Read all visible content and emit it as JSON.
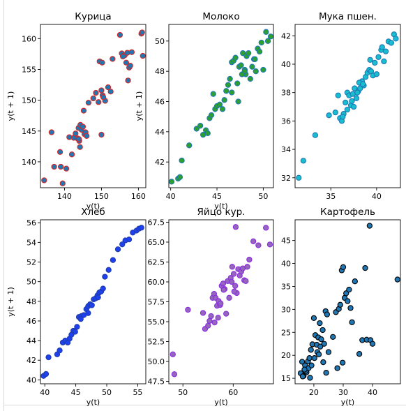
{
  "chart_data": [
    {
      "type": "scatter",
      "title": "Курица",
      "xlabel": "y(t)",
      "ylabel": "y(t + 1)",
      "xlim": [
        133.5,
        162
      ],
      "ylim": [
        135.8,
        162.3
      ],
      "xticks": [
        140,
        150,
        160
      ],
      "yticks": [
        140,
        145,
        150,
        155,
        160
      ],
      "face_color": "#1f77b4",
      "edge_color": "#d62728",
      "grid": false,
      "series": [
        {
          "x": [
            134.5,
            136.5,
            137.2,
            138.8,
            139.0,
            139.5,
            140.5,
            141.3,
            142.0,
            142.5,
            143.0,
            143.5,
            143.8,
            144.0,
            144.3,
            144.6,
            145.0,
            145.4,
            145.7,
            146.0,
            144.2,
            143.9,
            145.2,
            146.5,
            147.8,
            148.5,
            149.2,
            150.0,
            150.3,
            151.0,
            151.8,
            152.5,
            150.5,
            149.5,
            150.2,
            153.0,
            155.0,
            155.5,
            156.3,
            156.7,
            157.0,
            157.2,
            157.5,
            157.8,
            158.2,
            155.8,
            150.0,
            160.8,
            161.0,
            161.2
          ],
          "y": [
            137.0,
            144.8,
            139.2,
            141.6,
            139.2,
            136.5,
            138.9,
            144.0,
            141.2,
            143.9,
            144.6,
            143.8,
            145.5,
            143.4,
            146.0,
            145.2,
            145.7,
            144.5,
            144.8,
            144.2,
            142.4,
            143.7,
            148.3,
            149.6,
            150.3,
            151.2,
            149.7,
            151.6,
            150.8,
            149.9,
            152.1,
            151.4,
            150.5,
            156.3,
            156.1,
            156.7,
            160.6,
            157.6,
            157.3,
            156.1,
            157.7,
            153.2,
            155.3,
            155.6,
            157.8,
            157.1,
            144.4,
            160.8,
            161.0,
            157.2
          ]
        }
      ]
    },
    {
      "type": "scatter",
      "title": "Молоко",
      "xlabel": "y(t)",
      "ylabel": "y(t + 1)",
      "xlim": [
        39.8,
        51.1
      ],
      "ylim": [
        40.3,
        51.1
      ],
      "xticks": [
        40,
        45,
        50
      ],
      "yticks": [
        42,
        44,
        46,
        48,
        50
      ],
      "face_color": "#2ca02c",
      "edge_color": "#1f77b4",
      "grid": false,
      "series": [
        {
          "x": [
            40.1,
            40.8,
            41.0,
            41.2,
            42.0,
            42.8,
            43.2,
            43.5,
            43.8,
            44.0,
            44.2,
            44.4,
            44.6,
            44.8,
            45.0,
            45.3,
            45.6,
            45.8,
            46.0,
            46.2,
            46.4,
            46.6,
            46.8,
            47.0,
            47.2,
            47.4,
            47.6,
            47.8,
            48.0,
            48.2,
            48.4,
            48.6,
            48.8,
            49.0,
            49.2,
            49.4,
            49.6,
            49.8,
            50.0,
            50.3,
            50.5,
            50.8,
            46.6,
            47.3,
            48.1,
            49.1,
            48.0,
            47.7
          ],
          "y": [
            40.7,
            40.9,
            41.0,
            42.1,
            43.1,
            44.2,
            44.4,
            43.8,
            44.1,
            43.9,
            44.9,
            45.1,
            46.5,
            45.5,
            45.7,
            45.8,
            45.5,
            46.1,
            46.7,
            47.1,
            47.5,
            48.6,
            48.7,
            48.9,
            47.2,
            48.3,
            48.4,
            49.2,
            48.1,
            49.0,
            49.2,
            47.5,
            48.3,
            48.8,
            48.0,
            49.5,
            49.3,
            49.9,
            48.1,
            50.6,
            50.0,
            50.3,
            46.6,
            46.0,
            47.8,
            48.8,
            48.0,
            47.8
          ]
        }
      ]
    },
    {
      "type": "scatter",
      "title": "Мука пшен.",
      "xlabel": "",
      "ylabel": "",
      "xlim": [
        31.1,
        42.6
      ],
      "ylim": [
        31.3,
        42.8
      ],
      "xticks": [
        35,
        40
      ],
      "yticks": [
        32,
        34,
        36,
        38,
        40,
        42
      ],
      "face_color": "#17becf",
      "edge_color": "#1f77b4",
      "grid": false,
      "series": [
        {
          "x": [
            31.5,
            32.0,
            33.3,
            34.8,
            35.5,
            35.8,
            36.0,
            36.2,
            36.4,
            36.6,
            36.8,
            37.0,
            37.2,
            37.3,
            37.4,
            37.6,
            37.8,
            38.0,
            38.2,
            38.4,
            38.6,
            38.8,
            39.0,
            39.2,
            39.4,
            39.6,
            39.8,
            40.0,
            40.2,
            40.5,
            40.8,
            41.0,
            41.3,
            41.6,
            41.9,
            42.1,
            36.3,
            37.5,
            38.1,
            38.5,
            39.3,
            40.6,
            36.8,
            37.9
          ],
          "y": [
            32.0,
            33.2,
            35.0,
            36.4,
            36.6,
            37.8,
            36.2,
            36.0,
            36.5,
            37.3,
            38.0,
            37.8,
            37.1,
            37.4,
            37.9,
            38.3,
            37.6,
            38.1,
            38.3,
            38.8,
            38.5,
            39.1,
            39.4,
            39.6,
            39.5,
            39.2,
            40.1,
            39.3,
            40.5,
            41.0,
            40.2,
            40.9,
            41.6,
            41.5,
            42.1,
            41.8,
            36.3,
            37.0,
            38.7,
            38.6,
            40.3,
            41.2,
            36.8,
            38.0
          ]
        }
      ]
    },
    {
      "type": "scatter",
      "title": "Хлеб",
      "xlabel": "y(t)",
      "ylabel": "y(t + 1)",
      "xlim": [
        39.3,
        56.3
      ],
      "ylim": [
        39.6,
        56.3
      ],
      "xticks": [
        40,
        45,
        50,
        55
      ],
      "yticks": [
        40,
        42,
        44,
        46,
        48,
        50,
        52,
        54,
        56
      ],
      "face_color": "#1f40f0",
      "edge_color": "#1f3ea8",
      "grid": false,
      "series": [
        {
          "x": [
            39.8,
            40.2,
            40.6,
            42.0,
            42.4,
            42.9,
            43.3,
            43.7,
            44.0,
            44.3,
            44.6,
            44.9,
            45.2,
            45.5,
            45.9,
            46.3,
            46.7,
            47.0,
            47.3,
            47.6,
            47.9,
            48.2,
            48.5,
            48.8,
            49.1,
            49.4,
            49.7,
            50.3,
            51.0,
            51.8,
            52.5,
            53.0,
            53.6,
            54.2,
            54.8,
            55.2,
            55.6,
            47.0,
            48.6,
            45.8
          ],
          "y": [
            40.4,
            40.6,
            42.3,
            42.6,
            43.0,
            43.8,
            44.0,
            43.8,
            44.2,
            44.6,
            45.0,
            44.9,
            45.4,
            46.4,
            46.5,
            46.6,
            47.2,
            47.5,
            47.7,
            47.6,
            48.2,
            48.3,
            48.6,
            48.9,
            49.0,
            49.3,
            50.5,
            51.2,
            52.2,
            53.3,
            53.8,
            54.2,
            54.3,
            55.0,
            55.2,
            55.4,
            55.5,
            46.8,
            48.4,
            46.2
          ]
        }
      ]
    },
    {
      "type": "scatter",
      "title": "Яйцо кур.",
      "xlabel": "y(t)",
      "ylabel": "",
      "xlim": [
        47.2,
        68.0
      ],
      "ylim": [
        47.2,
        67.8
      ],
      "xticks": [
        50,
        60
      ],
      "yticks": [
        47.5,
        50.0,
        52.5,
        55.0,
        57.5,
        60.0,
        62.5,
        65.0,
        67.5
      ],
      "face_color": "#9467bd",
      "edge_color": "#8a2be2",
      "grid": false,
      "series": [
        {
          "x": [
            48.0,
            48.3,
            51.0,
            54.0,
            54.4,
            55.0,
            55.3,
            55.6,
            55.9,
            56.2,
            56.5,
            56.8,
            57.1,
            57.4,
            57.7,
            58.0,
            58.3,
            58.6,
            58.9,
            59.2,
            59.5,
            59.8,
            60.1,
            60.4,
            60.7,
            61.0,
            61.3,
            61.6,
            61.9,
            62.2,
            62.5,
            62.8,
            63.2,
            64.0,
            65.0,
            66.5,
            67.3,
            56.3,
            57.0,
            58.1,
            59.7,
            60.5,
            57.5,
            60.2
          ],
          "y": [
            50.9,
            48.4,
            56.5,
            56.1,
            54.1,
            54.5,
            55.1,
            55.7,
            58.0,
            58.5,
            58.0,
            57.0,
            57.6,
            57.1,
            59.5,
            59.8,
            59.1,
            56.0,
            60.1,
            58.0,
            60.5,
            61.9,
            61.0,
            59.5,
            58.6,
            61.6,
            60.8,
            61.3,
            61.7,
            60.2,
            60.1,
            61.9,
            62.8,
            65.1,
            64.6,
            66.8,
            64.7,
            54.9,
            55.5,
            59.0,
            60.0,
            66.9,
            57.3,
            58.8
          ]
        }
      ]
    },
    {
      "type": "scatter",
      "title": "Картофель",
      "xlabel": "y(t)",
      "ylabel": "",
      "xlim": [
        13.6,
        49.5
      ],
      "ylim": [
        13.8,
        49.5
      ],
      "xticks": [
        20,
        30,
        40
      ],
      "yticks": [
        15,
        20,
        25,
        30,
        35,
        40,
        45
      ],
      "face_color": "#1f77b4",
      "edge_color": "#000000",
      "grid": false,
      "series": [
        {
          "x": [
            15.5,
            16.0,
            16.5,
            17.0,
            17.5,
            18.0,
            18.5,
            19.0,
            19.5,
            20.0,
            20.5,
            21.0,
            21.5,
            22.0,
            22.5,
            23.0,
            23.5,
            24.0,
            24.5,
            25.0,
            16.2,
            17.2,
            18.2,
            19.2,
            20.2,
            21.2,
            22.2,
            23.2,
            24.2,
            26.5,
            27.5,
            28.5,
            29.0,
            29.5,
            30.0,
            30.5,
            31.0,
            31.5,
            32.0,
            32.5,
            33.0,
            34.0,
            35.5,
            36.5,
            37.5,
            38.0,
            39.0,
            39.3,
            40.0,
            48.5,
            28.0,
            29.8,
            16.8,
            18.7,
            21.7
          ],
          "y": [
            16.1,
            18.6,
            15.5,
            17.8,
            16.3,
            18.7,
            19.4,
            21.2,
            22.4,
            28.1,
            24.4,
            22.3,
            23.9,
            27.0,
            23.5,
            25.5,
            22.5,
            29.6,
            28.9,
            20.7,
            15.4,
            16.6,
            17.2,
            17.8,
            19.4,
            20.7,
            21.9,
            18.5,
            16.2,
            24.0,
            29.4,
            30.1,
            31.0,
            38.5,
            39.2,
            32.5,
            33.5,
            31.8,
            34.3,
            30.3,
            27.2,
            36.1,
            20.3,
            23.3,
            39.0,
            23.4,
            48.2,
            23.3,
            22.5,
            36.5,
            17.2,
            18.4,
            16.9,
            15.1,
            20.2
          ]
        }
      ]
    }
  ]
}
